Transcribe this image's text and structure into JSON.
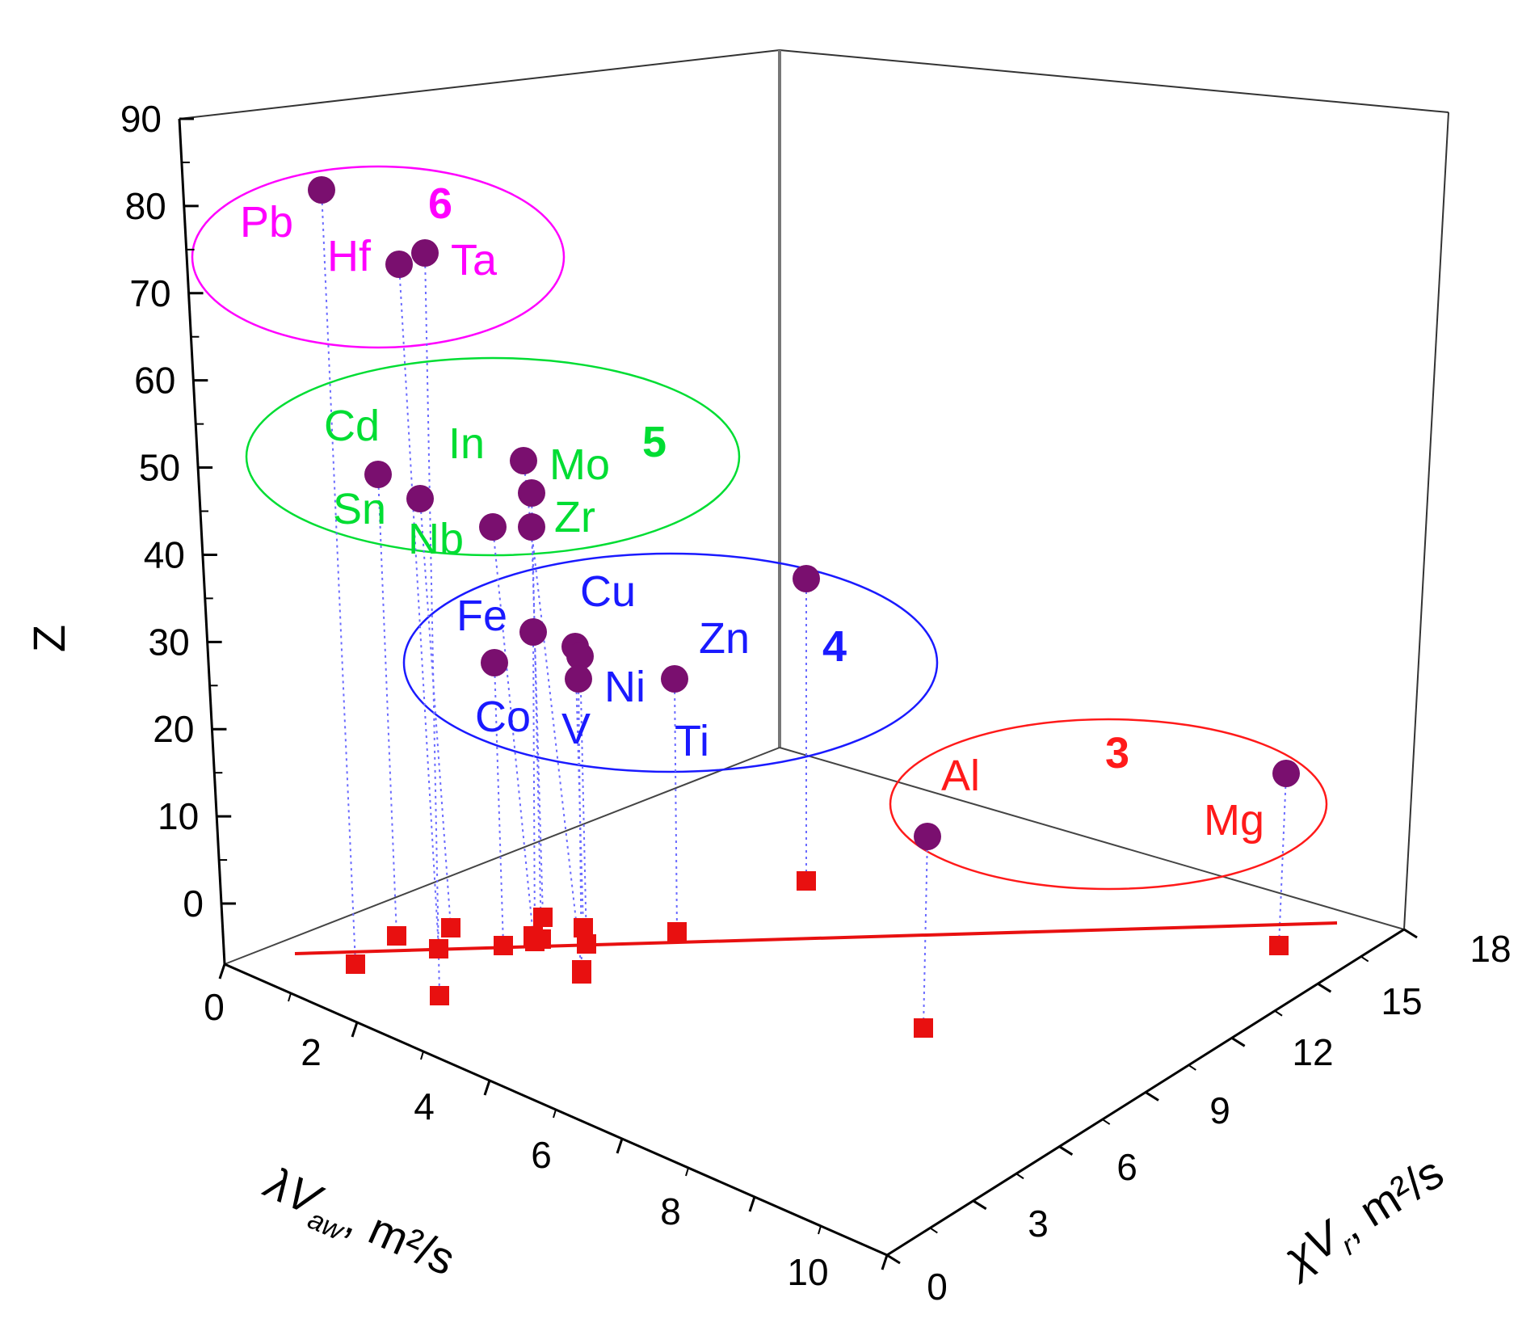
{
  "chart_data": {
    "type": "scatter3d",
    "title": "",
    "axes": {
      "x": {
        "label": "λV",
        "label_sub": "aw",
        "label_unit": "m²/s",
        "range": [
          0,
          10
        ],
        "ticks": [
          "0",
          "2",
          "4",
          "6",
          "8",
          "10"
        ]
      },
      "y": {
        "label": "χV",
        "label_sub": "r",
        "label_unit": "m²/s",
        "range": [
          0,
          18
        ],
        "ticks": [
          "0",
          "3",
          "6",
          "9",
          "12",
          "15",
          "18"
        ]
      },
      "z": {
        "label": "Z",
        "range": [
          0,
          90
        ],
        "ticks": [
          "0",
          "10",
          "20",
          "30",
          "40",
          "50",
          "60",
          "70",
          "80",
          "90"
        ]
      }
    },
    "groups": [
      {
        "id": "6",
        "color": "#ff00ff",
        "members": [
          "Pb",
          "Hf",
          "Ta"
        ]
      },
      {
        "id": "5",
        "color": "#00dd33",
        "members": [
          "Cd",
          "In",
          "Mo",
          "Sn",
          "Zr",
          "Nb"
        ]
      },
      {
        "id": "4",
        "color": "#1a1aff",
        "members": [
          "Fe",
          "Cu",
          "Zn",
          "Co",
          "V",
          "Ni",
          "Ti"
        ]
      },
      {
        "id": "3",
        "color": "#ff1a1a",
        "members": [
          "Al",
          "Mg"
        ]
      }
    ],
    "points": [
      {
        "label": "Pb",
        "z": 82,
        "group": "6"
      },
      {
        "label": "Hf",
        "z": 72,
        "group": "6"
      },
      {
        "label": "Ta",
        "z": 73,
        "group": "6"
      },
      {
        "label": "Cd",
        "z": 48,
        "group": "5"
      },
      {
        "label": "In",
        "z": 49,
        "group": "5"
      },
      {
        "label": "Mo",
        "z": 42,
        "group": "5"
      },
      {
        "label": "Sn",
        "z": 50,
        "group": "5"
      },
      {
        "label": "Zr",
        "z": 40,
        "group": "5"
      },
      {
        "label": "Nb",
        "z": 41,
        "group": "5"
      },
      {
        "label": "Fe",
        "z": 26,
        "group": "4"
      },
      {
        "label": "Cu",
        "z": 29,
        "group": "4"
      },
      {
        "label": "Zn",
        "z": 30,
        "group": "4"
      },
      {
        "label": "Co",
        "z": 27,
        "group": "4"
      },
      {
        "label": "V",
        "z": 23,
        "group": "4"
      },
      {
        "label": "Ni",
        "z": 28,
        "group": "4"
      },
      {
        "label": "Ti",
        "z": 22,
        "group": "4"
      },
      {
        "label": "Al",
        "z": 13,
        "group": "3"
      },
      {
        "label": "Mg",
        "z": 12,
        "group": "3"
      }
    ],
    "projection_color": "#e81010",
    "fit_line": true,
    "point_color": "#7a0f6f"
  }
}
